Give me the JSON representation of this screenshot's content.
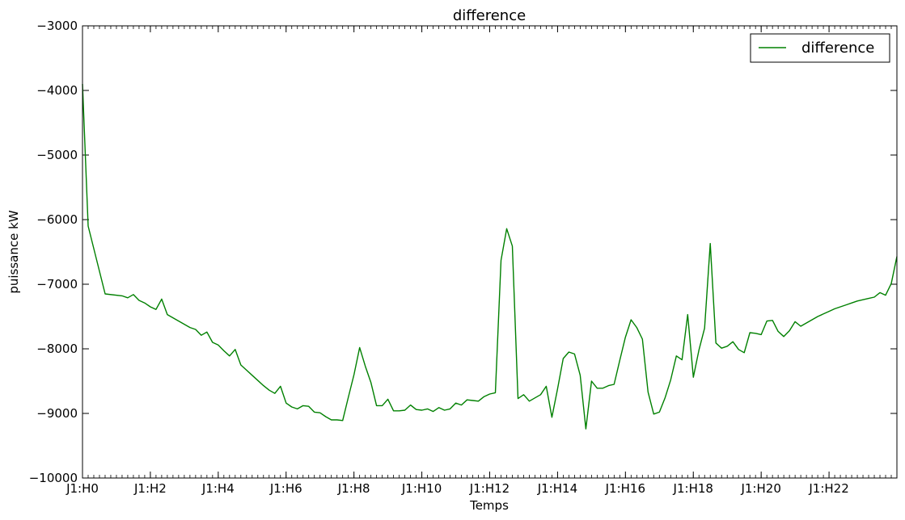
{
  "chart_data": {
    "type": "line",
    "title": "difference",
    "xlabel": "Temps",
    "ylabel": "puissance kW",
    "ylim": [
      -10000,
      -3000
    ],
    "yticks": [
      -10000,
      -9000,
      -8000,
      -7000,
      -6000,
      -5000,
      -4000,
      -3000
    ],
    "ytick_labels": [
      "−10000",
      "−9000",
      "−8000",
      "−7000",
      "−6000",
      "−5000",
      "−4000",
      "−3000"
    ],
    "xlim": [
      0,
      144
    ],
    "x_unit": "10-minute steps",
    "xticks": [
      0,
      12,
      24,
      36,
      48,
      60,
      72,
      84,
      96,
      108,
      120,
      132
    ],
    "xtick_labels": [
      "J1:H0",
      "J1:H2",
      "J1:H4",
      "J1:H6",
      "J1:H8",
      "J1:H10",
      "J1:H12",
      "J1:H14",
      "J1:H16",
      "J1:H18",
      "J1:H20",
      "J1:H22"
    ],
    "grid": false,
    "legend": {
      "placement": "top-right",
      "entries": [
        "difference"
      ]
    },
    "series": [
      {
        "name": "difference",
        "color": "#008000",
        "x": [
          0,
          1,
          4,
          7,
          8,
          9,
          10,
          11,
          12,
          13,
          14,
          15,
          16,
          17,
          18,
          19,
          20,
          21,
          22,
          23,
          24,
          25,
          26,
          27,
          28,
          29,
          30,
          31,
          32,
          33,
          34,
          35,
          36,
          37,
          38,
          39,
          40,
          41,
          42,
          43,
          44,
          45,
          46,
          47,
          48,
          49,
          50,
          51,
          52,
          53,
          54,
          55,
          56,
          57,
          58,
          59,
          60,
          61,
          62,
          63,
          64,
          65,
          66,
          67,
          68,
          69,
          70,
          71,
          72,
          73,
          74,
          75,
          76,
          77,
          78,
          79,
          80,
          81,
          82,
          83,
          84,
          85,
          86,
          87,
          88,
          89,
          90,
          91,
          92,
          93,
          94,
          95,
          96,
          97,
          98,
          99,
          100,
          101,
          102,
          103,
          104,
          105,
          106,
          107,
          108,
          109,
          110,
          111,
          112,
          113,
          114,
          115,
          116,
          117,
          118,
          119,
          120,
          121,
          122,
          123,
          124,
          125,
          126,
          127,
          128,
          129,
          130,
          131,
          132,
          133,
          134,
          135,
          136,
          137,
          138,
          139,
          140,
          141,
          142,
          143,
          144
        ],
        "y": [
          -3900,
          -6100,
          -7150,
          -7180,
          -7210,
          -7160,
          -7250,
          -7290,
          -7350,
          -7390,
          -7230,
          -7470,
          -7520,
          -7570,
          -7620,
          -7670,
          -7700,
          -7790,
          -7740,
          -7900,
          -7940,
          -8030,
          -8110,
          -8010,
          -8250,
          -8330,
          -8410,
          -8490,
          -8570,
          -8640,
          -8690,
          -8580,
          -8840,
          -8900,
          -8930,
          -8880,
          -8890,
          -8980,
          -8990,
          -9050,
          -9100,
          -9100,
          -9110,
          -8750,
          -8400,
          -7980,
          -8270,
          -8520,
          -8880,
          -8880,
          -8780,
          -8960,
          -8960,
          -8950,
          -8870,
          -8940,
          -8950,
          -8930,
          -8970,
          -8910,
          -8950,
          -8930,
          -8840,
          -8870,
          -8790,
          -8800,
          -8810,
          -8740,
          -8700,
          -8680,
          -6630,
          -6140,
          -6410,
          -8770,
          -8710,
          -8810,
          -8760,
          -8710,
          -8580,
          -9060,
          -8620,
          -8150,
          -8050,
          -8080,
          -8410,
          -9240,
          -8500,
          -8610,
          -8610,
          -8570,
          -8550,
          -8180,
          -7820,
          -7550,
          -7670,
          -7850,
          -8670,
          -9010,
          -8980,
          -8760,
          -8480,
          -8110,
          -8170,
          -7470,
          -8440,
          -8020,
          -7680,
          -6370,
          -7910,
          -7990,
          -7960,
          -7890,
          -8010,
          -8060,
          -7750,
          -7760,
          -7780,
          -7570,
          -7560,
          -7730,
          -7810,
          -7720,
          -7580,
          -7650,
          -7600,
          -7550,
          -7500,
          -7460,
          -7420,
          -7380,
          -7350,
          -7320,
          -7290,
          -7260,
          -7240,
          -7220,
          -7200,
          -7130,
          -7170,
          -6990,
          -6570
        ]
      }
    ]
  }
}
